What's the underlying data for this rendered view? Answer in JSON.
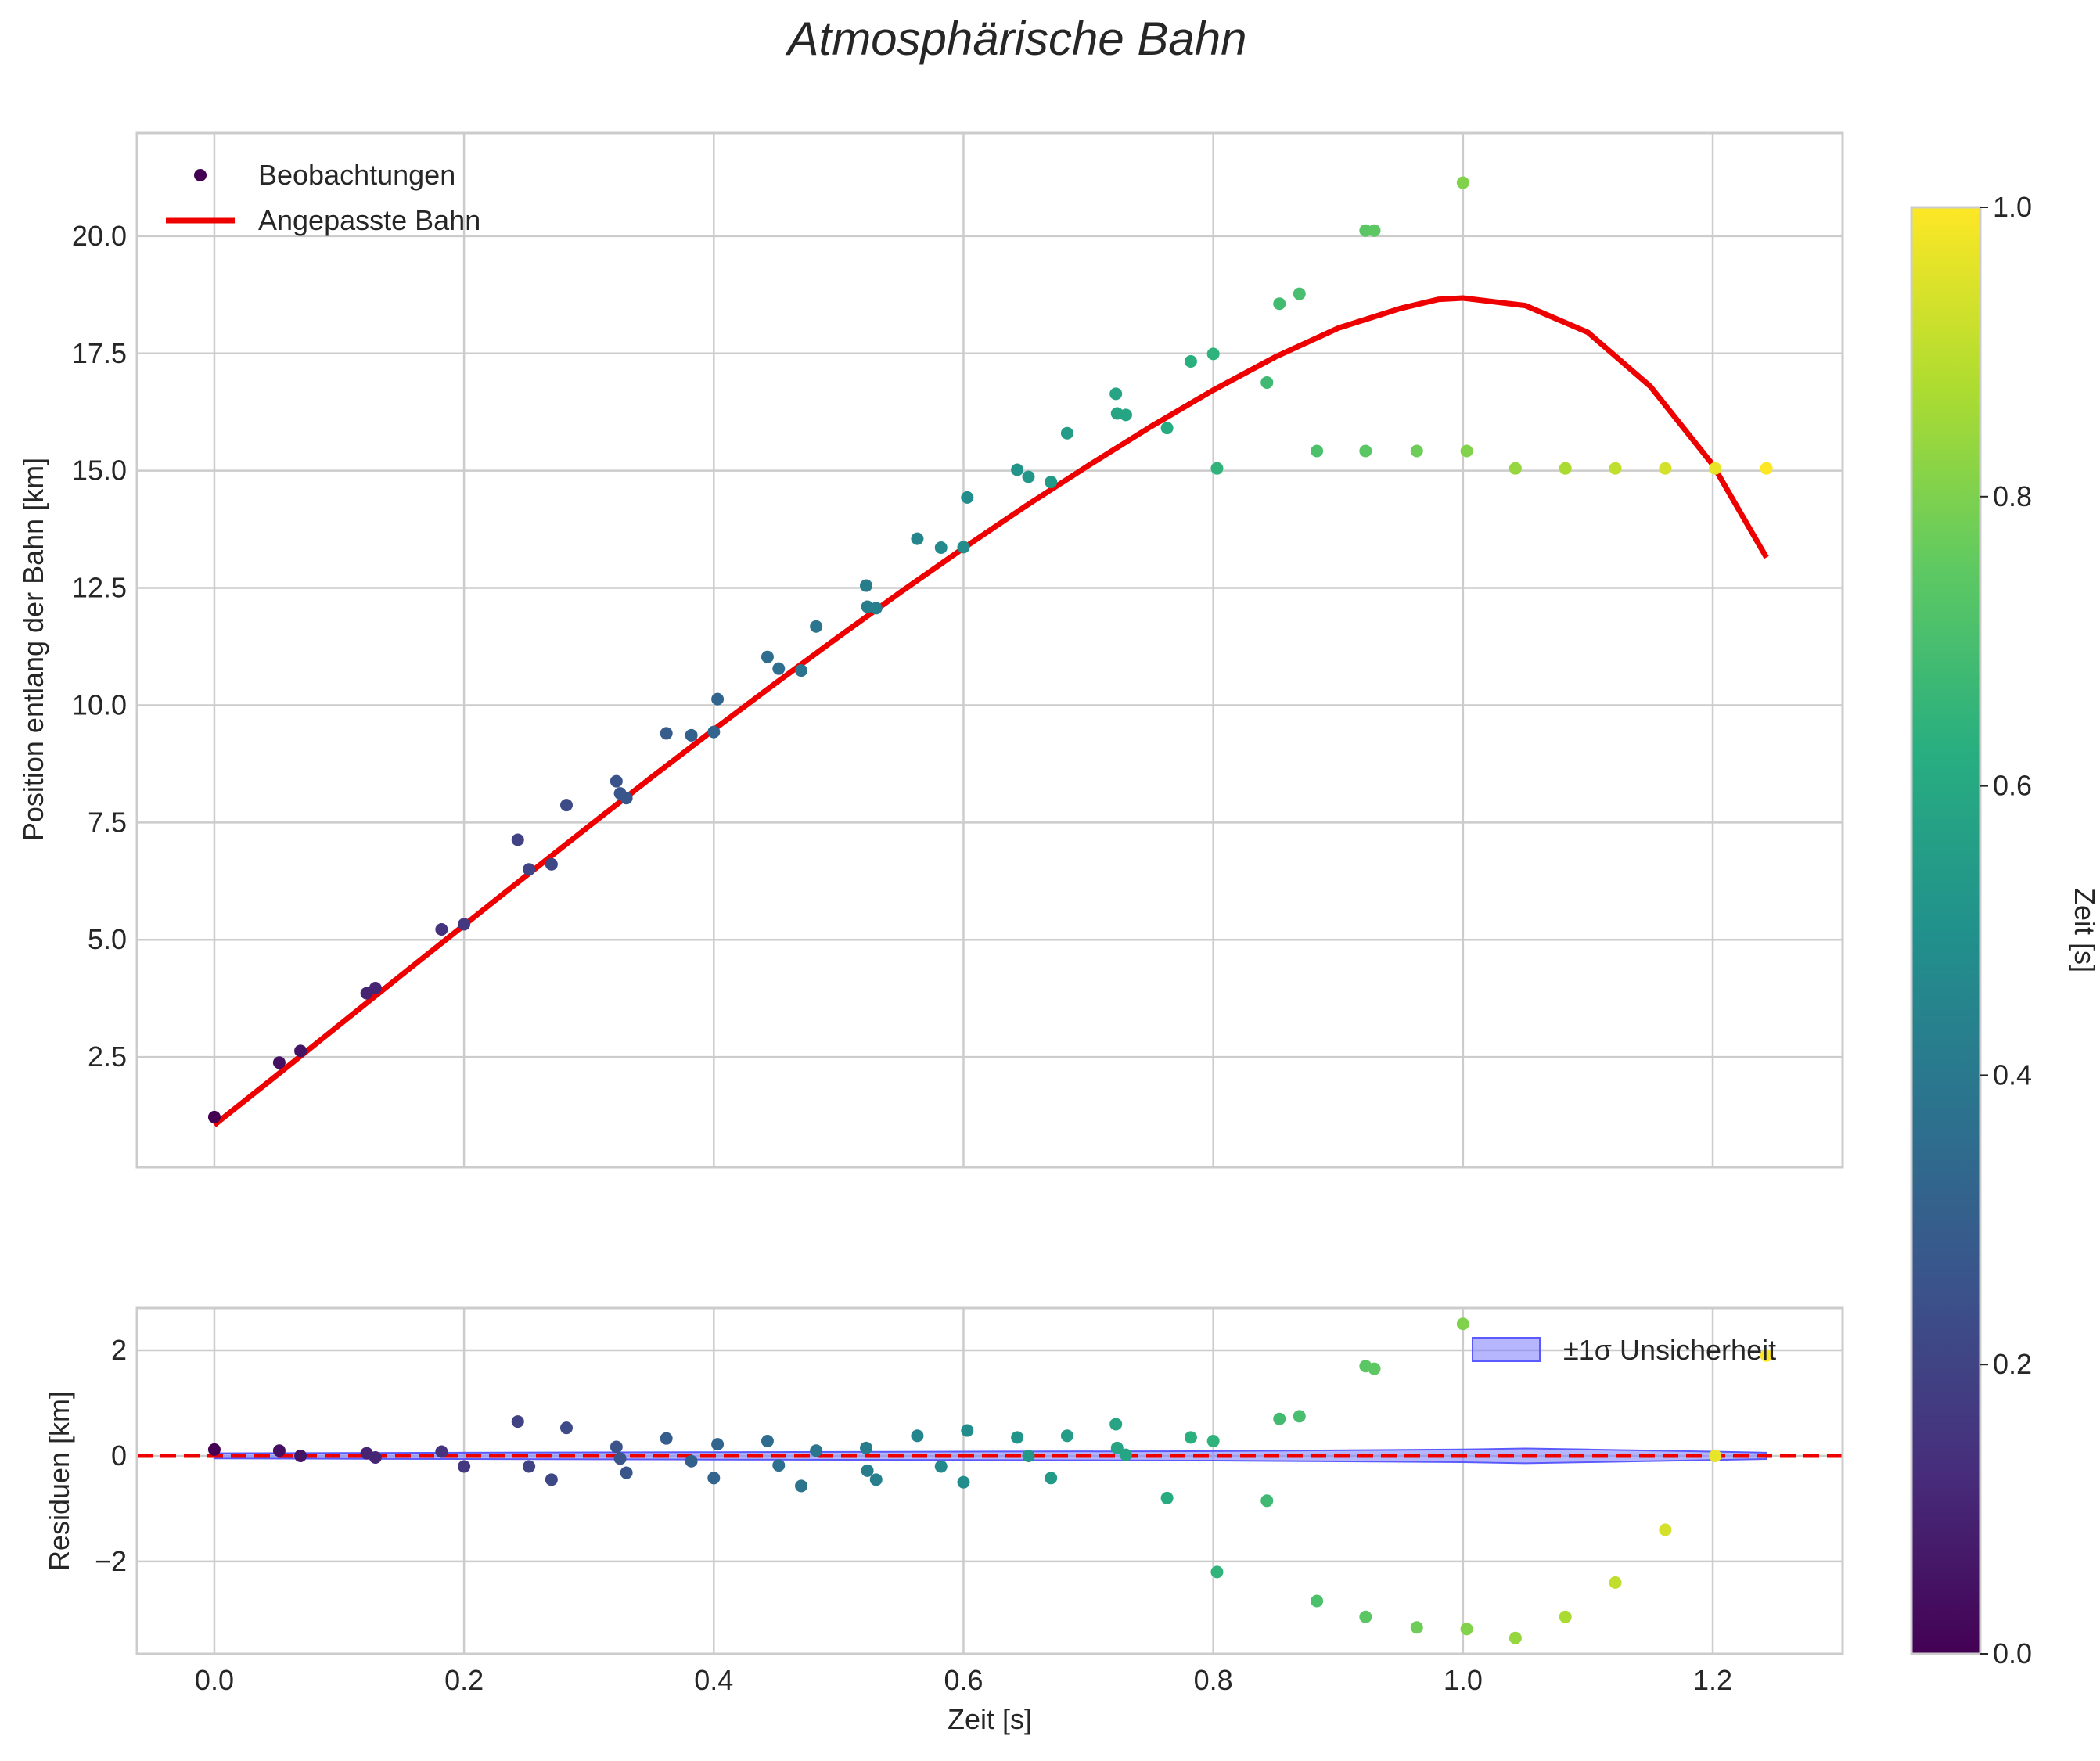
{
  "chart_data": [
    {
      "type": "scatter",
      "title": "Atmosphärische Bahn",
      "xlabel": "",
      "ylabel": "Position entlang der Bahn [km]",
      "xlim": [
        -0.062,
        1.304
      ],
      "ylim": [
        0.15,
        22.2
      ],
      "xticks": [
        0.0,
        0.2,
        0.4,
        0.6,
        0.8,
        1.0,
        1.2
      ],
      "yticks": [
        2.5,
        5.0,
        7.5,
        10.0,
        12.5,
        15.0,
        17.5,
        20.0
      ],
      "ytick_labels": [
        "2.5",
        "5.0",
        "7.5",
        "10.0",
        "12.5",
        "15.0",
        "17.5",
        "20.0"
      ],
      "grid": true,
      "legend_position": "top-left",
      "series": [
        {
          "name": "Beobachtungen",
          "kind": "scatter",
          "colormap": "viridis",
          "color_by": "Zeit [s]",
          "points": [
            [
              0.0,
              1.22
            ],
            [
              0.052,
              2.38
            ],
            [
              0.069,
              2.63
            ],
            [
              0.122,
              3.86
            ],
            [
              0.129,
              3.97
            ],
            [
              0.182,
              5.22
            ],
            [
              0.2,
              5.33
            ],
            [
              0.243,
              7.13
            ],
            [
              0.252,
              6.5
            ],
            [
              0.27,
              6.61
            ],
            [
              0.282,
              7.87
            ],
            [
              0.322,
              8.38
            ],
            [
              0.325,
              8.12
            ],
            [
              0.33,
              8.02
            ],
            [
              0.362,
              9.4
            ],
            [
              0.382,
              9.36
            ],
            [
              0.4,
              9.43
            ],
            [
              0.403,
              10.13
            ],
            [
              0.443,
              11.03
            ],
            [
              0.452,
              10.78
            ],
            [
              0.47,
              10.74
            ],
            [
              0.482,
              11.68
            ],
            [
              0.522,
              12.55
            ],
            [
              0.523,
              12.1
            ],
            [
              0.53,
              12.07
            ],
            [
              0.563,
              13.55
            ],
            [
              0.582,
              13.36
            ],
            [
              0.6,
              13.37
            ],
            [
              0.603,
              14.43
            ],
            [
              0.643,
              15.02
            ],
            [
              0.652,
              14.87
            ],
            [
              0.67,
              14.76
            ],
            [
              0.683,
              15.8
            ],
            [
              0.722,
              16.64
            ],
            [
              0.723,
              16.22
            ],
            [
              0.73,
              16.19
            ],
            [
              0.763,
              15.91
            ],
            [
              0.782,
              17.33
            ],
            [
              0.8,
              17.49
            ],
            [
              0.803,
              15.05
            ],
            [
              0.843,
              16.88
            ],
            [
              0.853,
              18.56
            ],
            [
              0.869,
              18.77
            ],
            [
              0.883,
              15.42
            ],
            [
              0.922,
              20.12
            ],
            [
              0.922,
              15.42
            ],
            [
              0.929,
              20.12
            ],
            [
              0.963,
              15.42
            ],
            [
              1.0,
              21.14
            ],
            [
              1.003,
              15.42
            ],
            [
              1.042,
              15.05
            ],
            [
              1.082,
              15.05
            ],
            [
              1.122,
              15.05
            ],
            [
              1.162,
              15.05
            ],
            [
              1.202,
              15.05
            ],
            [
              1.243,
              15.05
            ]
          ]
        },
        {
          "name": "Angepasste Bahn",
          "kind": "line",
          "color": "#ee0000",
          "points": [
            [
              0.0,
              1.05
            ],
            [
              0.05,
              2.11
            ],
            [
              0.1,
              3.18
            ],
            [
              0.15,
              4.25
            ],
            [
              0.2,
              5.31
            ],
            [
              0.25,
              6.37
            ],
            [
              0.3,
              7.42
            ],
            [
              0.35,
              8.46
            ],
            [
              0.4,
              9.48
            ],
            [
              0.45,
              10.48
            ],
            [
              0.5,
              11.46
            ],
            [
              0.55,
              12.42
            ],
            [
              0.6,
              13.35
            ],
            [
              0.65,
              14.25
            ],
            [
              0.7,
              15.11
            ],
            [
              0.75,
              15.94
            ],
            [
              0.8,
              16.72
            ],
            [
              0.85,
              17.43
            ],
            [
              0.9,
              18.04
            ],
            [
              0.95,
              18.46
            ],
            [
              0.98,
              18.65
            ],
            [
              1.0,
              18.68
            ],
            [
              1.05,
              18.52
            ],
            [
              1.1,
              17.95
            ],
            [
              1.15,
              16.8
            ],
            [
              1.2,
              15.13
            ],
            [
              1.243,
              13.15
            ]
          ]
        }
      ]
    },
    {
      "type": "scatter",
      "title": "",
      "xlabel": "Zeit [s]",
      "ylabel": "Residuen [km]",
      "xlim": [
        -0.062,
        1.304
      ],
      "ylim": [
        -3.75,
        2.8
      ],
      "xticks": [
        0.0,
        0.2,
        0.4,
        0.6,
        0.8,
        1.0,
        1.2
      ],
      "xtick_labels": [
        "0.0",
        "0.2",
        "0.4",
        "0.6",
        "0.8",
        "1.0",
        "1.2"
      ],
      "yticks": [
        -2,
        0,
        2
      ],
      "ytick_labels": [
        "−2",
        "0",
        "2"
      ],
      "grid": true,
      "legend_position": "top-right",
      "zero_line": {
        "value": 0,
        "color": "#ee0000",
        "style": "dashed"
      },
      "band": {
        "name": "±1σ Unsicherheit",
        "color": "#7a7aff",
        "points": [
          [
            0.0,
            0.05
          ],
          [
            0.2,
            0.06
          ],
          [
            0.4,
            0.07
          ],
          [
            0.6,
            0.08
          ],
          [
            0.8,
            0.09
          ],
          [
            1.0,
            0.12
          ],
          [
            1.05,
            0.14
          ],
          [
            1.1,
            0.12
          ],
          [
            1.2,
            0.08
          ],
          [
            1.243,
            0.06
          ]
        ]
      },
      "series": [
        {
          "name": "Residuen",
          "kind": "scatter",
          "colormap": "viridis",
          "points": [
            [
              0.0,
              0.12
            ],
            [
              0.052,
              0.1
            ],
            [
              0.069,
              0.0
            ],
            [
              0.122,
              0.05
            ],
            [
              0.129,
              -0.03
            ],
            [
              0.182,
              0.08
            ],
            [
              0.2,
              -0.2
            ],
            [
              0.243,
              0.65
            ],
            [
              0.252,
              -0.2
            ],
            [
              0.27,
              -0.45
            ],
            [
              0.282,
              0.53
            ],
            [
              0.322,
              0.17
            ],
            [
              0.325,
              -0.05
            ],
            [
              0.33,
              -0.32
            ],
            [
              0.362,
              0.33
            ],
            [
              0.382,
              -0.1
            ],
            [
              0.4,
              -0.42
            ],
            [
              0.403,
              0.22
            ],
            [
              0.443,
              0.28
            ],
            [
              0.452,
              -0.18
            ],
            [
              0.47,
              -0.57
            ],
            [
              0.482,
              0.1
            ],
            [
              0.522,
              0.15
            ],
            [
              0.523,
              -0.28
            ],
            [
              0.53,
              -0.45
            ],
            [
              0.563,
              0.38
            ],
            [
              0.582,
              -0.2
            ],
            [
              0.6,
              -0.5
            ],
            [
              0.603,
              0.48
            ],
            [
              0.643,
              0.35
            ],
            [
              0.652,
              0.0
            ],
            [
              0.67,
              -0.42
            ],
            [
              0.683,
              0.38
            ],
            [
              0.722,
              0.6
            ],
            [
              0.723,
              0.15
            ],
            [
              0.73,
              0.02
            ],
            [
              0.763,
              -0.8
            ],
            [
              0.782,
              0.35
            ],
            [
              0.8,
              0.28
            ],
            [
              0.803,
              -2.2
            ],
            [
              0.843,
              -0.85
            ],
            [
              0.853,
              0.7
            ],
            [
              0.869,
              0.75
            ],
            [
              0.883,
              -2.75
            ],
            [
              0.922,
              1.7
            ],
            [
              0.922,
              -3.05
            ],
            [
              0.929,
              1.65
            ],
            [
              0.963,
              -3.25
            ],
            [
              1.0,
              2.5
            ],
            [
              1.003,
              -3.28
            ],
            [
              1.042,
              -3.45
            ],
            [
              1.082,
              -3.05
            ],
            [
              1.122,
              -2.4
            ],
            [
              1.162,
              -1.4
            ],
            [
              1.202,
              0.0
            ],
            [
              1.243,
              1.9
            ]
          ]
        }
      ]
    }
  ],
  "figure": {
    "title": "Atmosphärische Bahn",
    "legend_main": [
      "Beobachtungen",
      "Angepasste Bahn"
    ],
    "legend_residual": [
      "±1σ Unsicherheit"
    ],
    "colorbar": {
      "label": "Zeit [s]",
      "range": [
        0.0,
        1.0
      ],
      "ticks": [
        0.0,
        0.2,
        0.4,
        0.6,
        0.8,
        1.0
      ],
      "tick_labels": [
        "0.0",
        "0.2",
        "0.4",
        "0.6",
        "0.8",
        "1.0"
      ]
    }
  }
}
